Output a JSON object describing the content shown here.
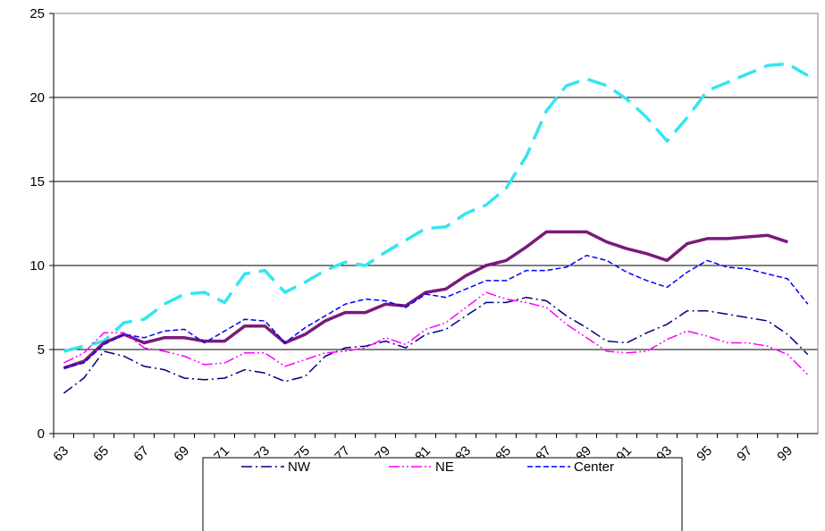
{
  "chart_data": {
    "type": "line",
    "categories": [
      "63",
      null,
      "65",
      null,
      "67",
      null,
      "69",
      null,
      "71",
      null,
      "73",
      null,
      "75",
      null,
      "77",
      null,
      "79",
      null,
      "81",
      null,
      "83",
      null,
      "85",
      null,
      "87",
      null,
      "89",
      null,
      "91",
      null,
      "93",
      null,
      "95",
      null,
      "97",
      null,
      "99",
      null
    ],
    "ylim": [
      0,
      25
    ],
    "yticks": [
      0,
      5,
      10,
      15,
      20,
      25
    ],
    "grid": true,
    "series": [
      {
        "color": "#33e6f0",
        "style": "longdash",
        "width": 3.5,
        "values": [
          4.9,
          5.2,
          5.5,
          6.6,
          6.8,
          7.7,
          8.3,
          8.4,
          7.8,
          9.5,
          9.7,
          8.4,
          9.0,
          9.7,
          10.2,
          10.0,
          10.8,
          11.5,
          12.2,
          12.3,
          13.1,
          13.6,
          14.6,
          16.5,
          19.2,
          20.7,
          21.1,
          20.7,
          19.9,
          18.8,
          17.4,
          18.8,
          20.4,
          20.9,
          21.4,
          21.9,
          22.0,
          21.3
        ]
      },
      {
        "color": "#7a1a7a",
        "style": "solid",
        "width": 3.5,
        "values": [
          3.9,
          4.3,
          5.4,
          5.9,
          5.4,
          5.7,
          5.7,
          5.5,
          5.5,
          6.4,
          6.4,
          5.4,
          5.9,
          6.7,
          7.2,
          7.2,
          7.7,
          7.6,
          8.4,
          8.6,
          9.4,
          10.0,
          10.3,
          11.1,
          12.0,
          12.0,
          12.0,
          11.4,
          11.0,
          10.7,
          10.3,
          11.3,
          11.6,
          11.6,
          11.7,
          11.8,
          11.4,
          null
        ]
      },
      {
        "name": "NW",
        "color": "#000080",
        "style": "dashdot",
        "width": 1.5,
        "values": [
          2.4,
          3.3,
          4.9,
          4.6,
          4.0,
          3.8,
          3.3,
          3.2,
          3.3,
          3.8,
          3.6,
          3.1,
          3.4,
          4.6,
          5.1,
          5.2,
          5.5,
          5.1,
          5.9,
          6.2,
          7.0,
          7.8,
          7.8,
          8.1,
          7.9,
          7.0,
          6.3,
          5.5,
          5.4,
          6.0,
          6.5,
          7.3,
          7.3,
          7.1,
          6.9,
          6.7,
          5.9,
          4.7
        ]
      },
      {
        "name": "NE",
        "color": "#ff00ff",
        "style": "dashdotdot",
        "width": 1.5,
        "values": [
          4.2,
          4.8,
          6.0,
          6.0,
          5.1,
          4.9,
          4.6,
          4.1,
          4.2,
          4.8,
          4.8,
          4.0,
          4.4,
          4.8,
          4.9,
          5.1,
          5.7,
          5.3,
          6.2,
          6.6,
          7.5,
          8.4,
          8.0,
          7.8,
          7.5,
          6.5,
          5.7,
          4.9,
          4.8,
          4.9,
          5.6,
          6.1,
          5.8,
          5.4,
          5.4,
          5.2,
          4.7,
          3.5
        ]
      },
      {
        "name": "Center",
        "color": "#0000ff",
        "style": "dash",
        "width": 1.5,
        "values": [
          3.9,
          4.2,
          5.3,
          5.9,
          5.7,
          6.1,
          6.2,
          5.4,
          6.1,
          6.8,
          6.7,
          5.4,
          6.3,
          7.0,
          7.7,
          8.0,
          7.9,
          7.5,
          8.3,
          8.1,
          8.6,
          9.1,
          9.1,
          9.7,
          9.7,
          9.9,
          10.6,
          10.3,
          9.6,
          9.1,
          8.7,
          9.6,
          10.3,
          9.9,
          9.8,
          9.5,
          9.2,
          7.7
        ]
      }
    ]
  }
}
